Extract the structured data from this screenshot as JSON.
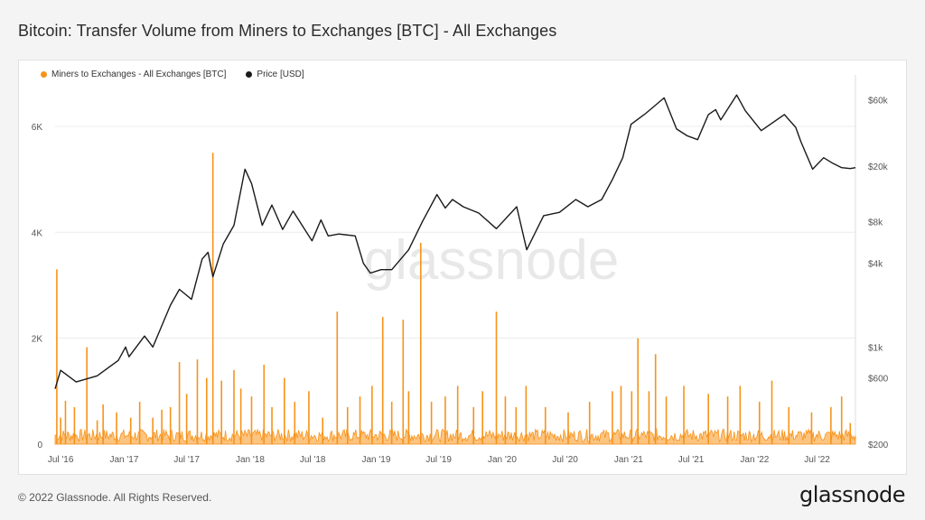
{
  "title": "Bitcoin: Transfer Volume from Miners to Exchanges [BTC] - All Exchanges",
  "footer": {
    "copyright": "© 2022 Glassnode. All Rights Reserved.",
    "logo_text": "glassnode"
  },
  "watermark": "glassnode",
  "colors": {
    "volume": "#f7931a",
    "price": "#1a1a1a",
    "grid": "#ececec"
  },
  "legend": [
    {
      "label": "Miners to Exchanges - All Exchanges [BTC]",
      "color": "#f7931a"
    },
    {
      "label": "Price [USD]",
      "color": "#1a1a1a"
    }
  ],
  "chart_data": {
    "type": "line",
    "title": "Bitcoin: Transfer Volume from Miners to Exchanges [BTC] - All Exchanges",
    "x_range": [
      "2016-06-15",
      "2022-10-20"
    ],
    "x_ticks": [
      "Jul '16",
      "Jan '17",
      "Jul '17",
      "Jan '18",
      "Jul '18",
      "Jan '19",
      "Jul '19",
      "Jan '20",
      "Jul '20",
      "Jan '21",
      "Jul '21",
      "Jan '22",
      "Jul '22"
    ],
    "left_axis": {
      "ticks": [
        "0",
        "2K",
        "4K",
        "6K"
      ],
      "values": [
        0,
        2000,
        4000,
        6000
      ],
      "range": [
        0,
        6800
      ]
    },
    "right_axis": {
      "scale": "log",
      "ticks": [
        "$200",
        "$600",
        "$1k",
        "$4k",
        "$8k",
        "$20k",
        "$60k"
      ],
      "values": [
        200,
        600,
        1000,
        4000,
        8000,
        20000,
        60000
      ]
    },
    "grid": true,
    "legend_position": "top-left",
    "series": [
      {
        "name": "Miners to Exchanges - All Exchanges [BTC]",
        "axis": "left",
        "style": "area",
        "baseline_level": 150,
        "x": [
          "2016-06-20",
          "2016-07-01",
          "2016-07-15",
          "2016-08-10",
          "2016-09-15",
          "2016-10-15",
          "2016-11-01",
          "2016-12-10",
          "2017-01-20",
          "2017-02-15",
          "2017-03-25",
          "2017-04-20",
          "2017-05-15",
          "2017-06-10",
          "2017-07-01",
          "2017-08-01",
          "2017-08-28",
          "2017-09-15",
          "2017-10-10",
          "2017-11-15",
          "2017-12-05",
          "2018-01-05",
          "2018-02-10",
          "2018-03-05",
          "2018-04-10",
          "2018-05-10",
          "2018-06-20",
          "2018-07-30",
          "2018-09-10",
          "2018-10-10",
          "2018-11-15",
          "2018-12-20",
          "2019-01-20",
          "2019-02-15",
          "2019-03-20",
          "2019-04-05",
          "2019-05-10",
          "2019-06-10",
          "2019-07-20",
          "2019-08-25",
          "2019-10-10",
          "2019-11-05",
          "2019-12-15",
          "2020-01-10",
          "2020-02-10",
          "2020-03-10",
          "2020-05-05",
          "2020-07-10",
          "2020-09-10",
          "2020-11-15",
          "2020-12-10",
          "2021-01-10",
          "2021-01-28",
          "2021-03-01",
          "2021-03-20",
          "2021-04-20",
          "2021-06-10",
          "2021-08-20",
          "2021-10-15",
          "2021-11-20",
          "2022-01-15",
          "2022-02-20",
          "2022-04-10",
          "2022-06-15",
          "2022-08-10",
          "2022-09-10",
          "2022-10-05"
        ],
        "values": [
          3300,
          500,
          820,
          700,
          1830,
          450,
          750,
          600,
          500,
          800,
          500,
          650,
          700,
          1550,
          950,
          1600,
          1250,
          5500,
          1200,
          1400,
          1050,
          900,
          1500,
          700,
          1250,
          800,
          1000,
          500,
          2500,
          700,
          900,
          1100,
          2400,
          800,
          2350,
          1000,
          3800,
          800,
          900,
          1100,
          700,
          1000,
          2500,
          900,
          700,
          1100,
          700,
          600,
          800,
          1000,
          1100,
          1000,
          2000,
          1000,
          1700,
          900,
          1100,
          950,
          900,
          1100,
          800,
          1200,
          700,
          600,
          700,
          900,
          400
        ]
      },
      {
        "name": "Price [USD]",
        "axis": "right",
        "style": "line",
        "x": [
          "2016-06-15",
          "2016-07-01",
          "2016-08-15",
          "2016-10-15",
          "2016-12-15",
          "2017-01-05",
          "2017-01-15",
          "2017-03-01",
          "2017-03-25",
          "2017-05-15",
          "2017-06-10",
          "2017-07-15",
          "2017-08-15",
          "2017-09-01",
          "2017-09-15",
          "2017-10-15",
          "2017-11-15",
          "2017-12-17",
          "2018-01-05",
          "2018-02-05",
          "2018-03-05",
          "2018-04-05",
          "2018-05-05",
          "2018-06-29",
          "2018-07-25",
          "2018-08-15",
          "2018-09-15",
          "2018-11-01",
          "2018-11-25",
          "2018-12-15",
          "2019-01-15",
          "2019-02-15",
          "2019-04-05",
          "2019-05-15",
          "2019-06-26",
          "2019-07-20",
          "2019-08-10",
          "2019-09-10",
          "2019-10-25",
          "2019-12-15",
          "2020-02-12",
          "2020-03-12",
          "2020-04-30",
          "2020-06-15",
          "2020-08-01",
          "2020-09-05",
          "2020-10-15",
          "2020-11-15",
          "2020-12-15",
          "2021-01-08",
          "2021-02-20",
          "2021-04-14",
          "2021-05-20",
          "2021-06-20",
          "2021-07-20",
          "2021-08-20",
          "2021-09-10",
          "2021-09-25",
          "2021-11-10",
          "2021-12-05",
          "2022-01-20",
          "2022-03-28",
          "2022-04-30",
          "2022-05-15",
          "2022-06-18",
          "2022-07-20",
          "2022-08-15",
          "2022-09-10",
          "2022-10-05",
          "2022-10-20"
        ],
        "values": [
          500,
          680,
          560,
          620,
          800,
          1000,
          850,
          1200,
          1000,
          2000,
          2600,
          2200,
          4300,
          4800,
          3200,
          5500,
          7500,
          19000,
          15000,
          7500,
          10500,
          7000,
          9500,
          5800,
          8200,
          6300,
          6500,
          6300,
          4000,
          3400,
          3600,
          3600,
          5000,
          8000,
          12500,
          10000,
          11500,
          10200,
          9200,
          7100,
          10200,
          5000,
          8800,
          9300,
          11500,
          10200,
          11500,
          16000,
          23000,
          40000,
          48000,
          62000,
          37000,
          33000,
          31000,
          47000,
          51000,
          43000,
          65000,
          50000,
          36000,
          47000,
          38000,
          30000,
          19000,
          23000,
          21000,
          19500,
          19200,
          19500
        ]
      }
    ]
  }
}
